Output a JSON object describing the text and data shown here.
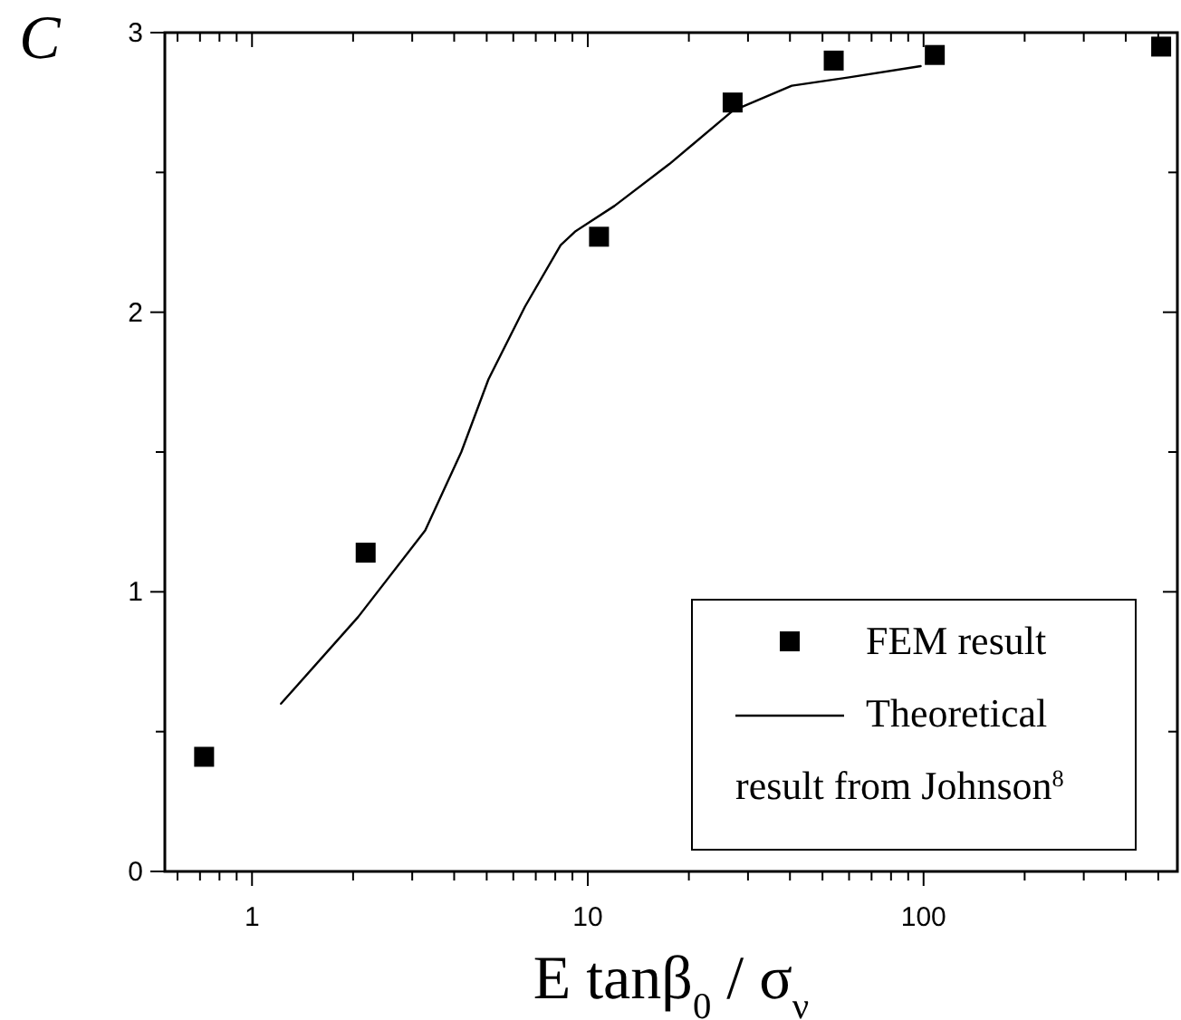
{
  "chart_data": {
    "type": "scatter",
    "xlabel": "E tanβ$_{0}$ / σ$_{ν}$",
    "ylabel": "C",
    "log": "x",
    "xlim": [
      0.55,
      570
    ],
    "ylim": [
      0,
      3
    ],
    "xticks": [
      {
        "value": 0.6,
        "label": null
      },
      {
        "value": 0.7,
        "label": null
      },
      {
        "value": 0.8,
        "label": null
      },
      {
        "value": 0.9,
        "label": null
      },
      1,
      {
        "value": 2,
        "label": null
      },
      {
        "value": 3,
        "label": null
      },
      {
        "value": 4,
        "label": null
      },
      {
        "value": 5,
        "label": null
      },
      {
        "value": 6,
        "label": null
      },
      {
        "value": 7,
        "label": null
      },
      {
        "value": 8,
        "label": null
      },
      {
        "value": 9,
        "label": null
      },
      10,
      {
        "value": 20,
        "label": null
      },
      {
        "value": 30,
        "label": null
      },
      {
        "value": 40,
        "label": null
      },
      {
        "value": 50,
        "label": null
      },
      {
        "value": 60,
        "label": null
      },
      {
        "value": 70,
        "label": null
      },
      {
        "value": 80,
        "label": null
      },
      {
        "value": 90,
        "label": null
      },
      100,
      {
        "value": 200,
        "label": null
      },
      {
        "value": 300,
        "label": null
      },
      {
        "value": 400,
        "label": null
      },
      {
        "value": 500,
        "label": null
      }
    ],
    "yticks": [
      0,
      {
        "value": 0.5,
        "label": null
      },
      1,
      {
        "value": 1.5,
        "label": null
      },
      2,
      {
        "value": 2.5,
        "label": null
      },
      3
    ],
    "legend": "bottom right",
    "grid": false,
    "series": [
      {
        "name": "FEM result",
        "type": "scatter",
        "marker": "square",
        "color": "#000000",
        "x": [
          0.72,
          2.18,
          10.8,
          27,
          54,
          108,
          510
        ],
        "values": [
          0.41,
          1.14,
          2.27,
          2.75,
          2.9,
          2.92,
          2.95
        ]
      },
      {
        "name": "Theoretical result from Johnson$^{8}$",
        "type": "line",
        "marker": "none",
        "line_style": "solid",
        "color": "#000000",
        "x": [
          1.22,
          2.07,
          3.28,
          4.2,
          5.06,
          6.5,
          8.3,
          9.2,
          12,
          17.5,
          27,
          40.5,
          60,
          98
        ],
        "values": [
          0.6,
          0.91,
          1.22,
          1.5,
          1.76,
          2.02,
          2.24,
          2.29,
          2.38,
          2.53,
          2.72,
          2.81,
          2.84,
          2.88
        ]
      }
    ]
  }
}
